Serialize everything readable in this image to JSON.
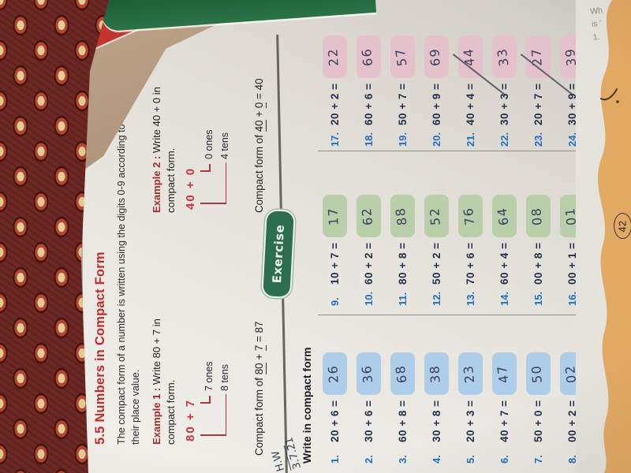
{
  "colors": {
    "title_red": "#c12b2b",
    "example_label_maroon": "#a32c2c",
    "big_expression_red": "#cc3340",
    "item_number_blue": "#1f6fc4",
    "expression_navy": "#232f48",
    "banner_green": "#2c6e4e",
    "box_blue": "#aecde8",
    "box_green": "#b9cfa9",
    "box_pink": "#e5c1cc",
    "handwriting_ink": "#39415e",
    "band_peach": "#e2a963"
  },
  "page": {
    "title": "5.5 Numbers in Compact Form",
    "intro_line1": "The compact form of a number is written using the digits 0-9 according to",
    "intro_line2": "their place value.",
    "examples": [
      {
        "label": "Example 1 :",
        "instruction_line1": "Write 80 + 7 in",
        "instruction_line2": "compact form.",
        "big_expression": "80 + 7",
        "ones_label": "7 ones",
        "tens_label": "8 tens",
        "compact_prefix": "Compact form of",
        "compact_a": "80",
        "compact_plus": "+",
        "compact_b": "7",
        "compact_equals": "=",
        "compact_result": "87"
      },
      {
        "label": "Example 2 :",
        "instruction_line1": "Write 40 + 0 in",
        "instruction_line2": "compact form.",
        "big_expression": "40 + 0",
        "ones_label": "0 ones",
        "tens_label": "4 tens",
        "compact_prefix": "Compact form of",
        "compact_a": "40",
        "compact_plus": "+",
        "compact_b": "0",
        "compact_equals": "=",
        "compact_result": "40"
      }
    ],
    "banner": "Exercise",
    "exercise_heading": "Write in compact form",
    "columns": [
      {
        "box_color": "#aecde8",
        "items": [
          {
            "num": "1.",
            "expr": "20 + 6 =",
            "answer": "26"
          },
          {
            "num": "2.",
            "expr": "30 + 6 =",
            "answer": "36"
          },
          {
            "num": "3.",
            "expr": "60 + 8 =",
            "answer": "68"
          },
          {
            "num": "4.",
            "expr": "30 + 8 =",
            "answer": "38"
          },
          {
            "num": "5.",
            "expr": "20 + 3 =",
            "answer": "23"
          },
          {
            "num": "6.",
            "expr": "40 + 7 =",
            "answer": "47"
          },
          {
            "num": "7.",
            "expr": "50 + 0 =",
            "answer": "50"
          },
          {
            "num": "8.",
            "expr": "00 + 2 =",
            "answer": "02"
          }
        ]
      },
      {
        "box_color": "#b9cfa9",
        "items": [
          {
            "num": "9.",
            "expr": "10 + 7 =",
            "answer": "17"
          },
          {
            "num": "10.",
            "expr": "60 + 2 =",
            "answer": "62"
          },
          {
            "num": "11.",
            "expr": "80 + 8 =",
            "answer": "88"
          },
          {
            "num": "12.",
            "expr": "50 + 2 =",
            "answer": "52"
          },
          {
            "num": "13.",
            "expr": "70 + 6 =",
            "answer": "76"
          },
          {
            "num": "14.",
            "expr": "60 + 4 =",
            "answer": "64"
          },
          {
            "num": "15.",
            "expr": "00 + 8 =",
            "answer": "08"
          },
          {
            "num": "16.",
            "expr": "00 + 1 =",
            "answer": "01"
          }
        ]
      },
      {
        "box_color": "#e5c1cc",
        "items": [
          {
            "num": "17.",
            "expr": "20 + 2 =",
            "answer": "22"
          },
          {
            "num": "18.",
            "expr": "60 + 6 =",
            "answer": "66"
          },
          {
            "num": "19.",
            "expr": "50 + 7 =",
            "answer": "57"
          },
          {
            "num": "20.",
            "expr": "60 + 9 =",
            "answer": "69"
          },
          {
            "num": "21.",
            "expr": "40 + 4 =",
            "answer": "44",
            "pen_stroke": true
          },
          {
            "num": "22.",
            "expr": "30 + 3 =",
            "answer": "33"
          },
          {
            "num": "23.",
            "expr": "20 + 7 =",
            "answer": "27",
            "pen_stroke": true
          },
          {
            "num": "24.",
            "expr": "30 + 9 =",
            "answer": "39"
          }
        ]
      }
    ],
    "page_number": "42",
    "margin_note": {
      "line1": "H.W",
      "line2": "3.7.21"
    }
  },
  "background": {
    "corner_marks": [
      "Wh",
      "is '",
      "1."
    ]
  }
}
